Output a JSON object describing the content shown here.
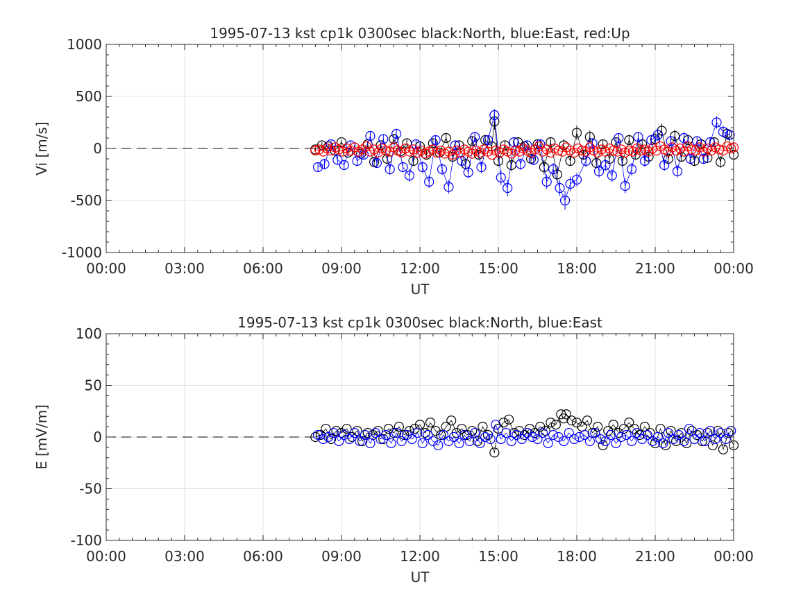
{
  "chart_data": [
    {
      "type": "scatter",
      "title": "1995-07-13 kst cp1k 0300sec black:North, blue:East, red:Up",
      "xlabel": "UT",
      "ylabel": "Vi [m/s]",
      "xlim": [
        0,
        24
      ],
      "ylim": [
        -1000,
        1000
      ],
      "xticks": [
        0,
        3,
        6,
        9,
        12,
        15,
        18,
        21,
        24
      ],
      "xtick_labels": [
        "00:00",
        "03:00",
        "06:00",
        "09:00",
        "12:00",
        "15:00",
        "18:00",
        "21:00",
        "00:00"
      ],
      "yticks": [
        1000,
        500,
        0,
        -500,
        -1000
      ],
      "ytick_labels": [
        "1000",
        "500",
        "0",
        "-500",
        "-1000"
      ],
      "grid": true,
      "baseline": {
        "y": 0,
        "x_start": 0,
        "x_end": 8,
        "style": "dashed"
      },
      "series": [
        {
          "color": "#000000",
          "marker": "circle",
          "error_bars": true,
          "x": [
            8.0,
            8.25,
            8.5,
            8.75,
            9.0,
            9.25,
            9.5,
            9.75,
            10.0,
            10.25,
            10.5,
            10.75,
            11.0,
            11.25,
            11.5,
            11.75,
            12.0,
            12.25,
            12.5,
            12.75,
            13.0,
            13.25,
            13.5,
            13.75,
            14.0,
            14.25,
            14.5,
            14.75,
            14.85,
            15.0,
            15.25,
            15.5,
            15.75,
            16.0,
            16.25,
            16.5,
            16.75,
            17.0,
            17.25,
            17.5,
            17.75,
            18.0,
            18.25,
            18.5,
            18.75,
            19.0,
            19.25,
            19.5,
            19.75,
            20.0,
            20.25,
            20.5,
            20.75,
            21.0,
            21.25,
            21.5,
            21.75,
            22.0,
            22.25,
            22.5,
            22.75,
            23.0,
            23.25,
            23.5,
            23.75,
            24.0
          ],
          "y": [
            -10,
            30,
            20,
            -20,
            60,
            -40,
            10,
            -50,
            40,
            -130,
            30,
            -100,
            90,
            -30,
            50,
            -120,
            20,
            -60,
            50,
            -40,
            100,
            -80,
            30,
            -150,
            70,
            -60,
            80,
            20,
            260,
            -120,
            30,
            -160,
            60,
            20,
            -100,
            40,
            -180,
            60,
            -250,
            30,
            -120,
            150,
            -60,
            110,
            -140,
            40,
            -100,
            60,
            -120,
            80,
            -60,
            40,
            -80,
            90,
            170,
            -100,
            120,
            -80,
            80,
            -120,
            40,
            -90,
            60,
            -130,
            140,
            -60
          ],
          "err": [
            20,
            30,
            25,
            30,
            25,
            30,
            25,
            30,
            35,
            40,
            30,
            40,
            50,
            40,
            35,
            40,
            30,
            35,
            40,
            35,
            45,
            40,
            35,
            50,
            45,
            40,
            50,
            40,
            80,
            50,
            40,
            60,
            40,
            35,
            45,
            40,
            70,
            50,
            80,
            60,
            50,
            70,
            50,
            60,
            50,
            45,
            50,
            45,
            50,
            50,
            45,
            40,
            50,
            60,
            70,
            50,
            60,
            50,
            45,
            50,
            45,
            50,
            45,
            55,
            60,
            50
          ]
        },
        {
          "color": "#0000ff",
          "marker": "circle",
          "error_bars": true,
          "x": [
            8.1,
            8.35,
            8.6,
            8.85,
            9.1,
            9.35,
            9.6,
            9.85,
            10.1,
            10.35,
            10.6,
            10.85,
            11.1,
            11.35,
            11.6,
            11.85,
            12.1,
            12.35,
            12.6,
            12.85,
            13.1,
            13.35,
            13.6,
            13.85,
            14.1,
            14.35,
            14.6,
            14.85,
            15.1,
            15.35,
            15.6,
            15.85,
            16.1,
            16.35,
            16.6,
            16.85,
            17.1,
            17.35,
            17.55,
            17.75,
            18.0,
            18.35,
            18.6,
            18.85,
            19.1,
            19.35,
            19.6,
            19.85,
            20.1,
            20.35,
            20.6,
            20.85,
            21.1,
            21.35,
            21.6,
            21.85,
            22.1,
            22.35,
            22.6,
            22.85,
            23.1,
            23.35,
            23.6,
            23.85
          ],
          "y": [
            -180,
            -150,
            40,
            -110,
            -160,
            30,
            -120,
            -60,
            120,
            -140,
            90,
            -200,
            140,
            -180,
            -260,
            40,
            -180,
            -320,
            80,
            -200,
            -370,
            30,
            -120,
            -230,
            110,
            -180,
            80,
            320,
            -280,
            -380,
            60,
            -150,
            30,
            -110,
            40,
            -320,
            -200,
            -380,
            -500,
            -340,
            -300,
            -120,
            50,
            -220,
            -160,
            -260,
            100,
            -360,
            -200,
            110,
            -120,
            80,
            130,
            -160,
            70,
            -220,
            100,
            -100,
            70,
            -100,
            60,
            250,
            160,
            130
          ],
          "err": [
            40,
            50,
            35,
            40,
            50,
            35,
            45,
            40,
            50,
            45,
            40,
            55,
            50,
            50,
            60,
            40,
            55,
            60,
            45,
            55,
            65,
            40,
            50,
            55,
            50,
            55,
            45,
            60,
            70,
            80,
            45,
            55,
            40,
            50,
            45,
            70,
            60,
            75,
            90,
            70,
            65,
            55,
            45,
            60,
            55,
            60,
            50,
            70,
            60,
            50,
            55,
            50,
            60,
            55,
            50,
            60,
            55,
            50,
            45,
            50,
            45,
            60,
            55,
            50
          ]
        },
        {
          "color": "#ff0000",
          "marker": "circle",
          "error_bars": false,
          "x": [
            8.0,
            8.15,
            8.3,
            8.45,
            8.6,
            8.75,
            8.9,
            9.05,
            9.2,
            9.35,
            9.5,
            9.65,
            9.8,
            9.95,
            10.1,
            10.25,
            10.4,
            10.55,
            10.7,
            10.85,
            11.0,
            11.15,
            11.3,
            11.45,
            11.6,
            11.75,
            11.9,
            12.05,
            12.2,
            12.35,
            12.5,
            12.65,
            12.8,
            12.95,
            13.1,
            13.25,
            13.4,
            13.55,
            13.7,
            13.85,
            14.0,
            14.15,
            14.3,
            14.45,
            14.6,
            14.75,
            14.9,
            15.05,
            15.2,
            15.35,
            15.5,
            15.65,
            15.8,
            15.95,
            16.1,
            16.25,
            16.4,
            16.55,
            16.7,
            16.85,
            17.0,
            17.15,
            17.3,
            17.45,
            17.6,
            17.75,
            17.9,
            18.05,
            18.2,
            18.35,
            18.5,
            18.65,
            18.8,
            18.95,
            19.1,
            19.25,
            19.4,
            19.55,
            19.7,
            19.85,
            20.0,
            20.15,
            20.3,
            20.45,
            20.6,
            20.75,
            20.9,
            21.05,
            21.2,
            21.35,
            21.5,
            21.65,
            21.8,
            21.95,
            22.1,
            22.25,
            22.4,
            22.55,
            22.7,
            22.85,
            23.0,
            23.15,
            23.3,
            23.45,
            23.6,
            23.75,
            23.9,
            24.0
          ],
          "y": [
            -20,
            -10,
            -30,
            0,
            -20,
            10,
            -10,
            -30,
            0,
            -20,
            10,
            -30,
            -10,
            20,
            -30,
            -10,
            -40,
            0,
            -20,
            -30,
            10,
            -20,
            -40,
            0,
            -30,
            -10,
            -40,
            -20,
            -50,
            -30,
            -10,
            -40,
            -20,
            -50,
            -30,
            -60,
            -20,
            -40,
            -10,
            -30,
            -50,
            -20,
            -40,
            -10,
            -30,
            -60,
            -20,
            -40,
            -10,
            -30,
            -50,
            -20,
            -30,
            0,
            -20,
            -40,
            -10,
            20,
            -30,
            -10,
            -40,
            0,
            -20,
            -30,
            10,
            -20,
            -40,
            0,
            -20,
            -30,
            10,
            -20,
            -40,
            -10,
            -30,
            0,
            -20,
            -30,
            -10,
            -40,
            -20,
            -30,
            0,
            -20,
            -10,
            -30,
            0,
            -20,
            20,
            -10,
            -30,
            10,
            -20,
            0,
            -30,
            20,
            -10,
            -20,
            10,
            -30,
            0,
            -20,
            10,
            -10,
            -20,
            20,
            0,
            10
          ]
        }
      ]
    },
    {
      "type": "scatter",
      "title": "1995-07-13 kst cp1k 0300sec black:North, blue:East",
      "xlabel": "UT",
      "ylabel": "E [mV/m]",
      "xlim": [
        0,
        24
      ],
      "ylim": [
        -100,
        100
      ],
      "xticks": [
        0,
        3,
        6,
        9,
        12,
        15,
        18,
        21,
        24
      ],
      "xtick_labels": [
        "00:00",
        "03:00",
        "06:00",
        "09:00",
        "12:00",
        "15:00",
        "18:00",
        "21:00",
        "00:00"
      ],
      "yticks": [
        100,
        50,
        0,
        -50,
        -100
      ],
      "ytick_labels": [
        "100",
        "50",
        "0",
        "-50",
        "-100"
      ],
      "grid": true,
      "baseline": {
        "y": 0,
        "x_start": 0,
        "x_end": 8,
        "style": "dashed"
      },
      "series": [
        {
          "color": "#000000",
          "marker": "circle",
          "error_bars": false,
          "x": [
            8.0,
            8.2,
            8.4,
            8.6,
            8.8,
            9.0,
            9.2,
            9.4,
            9.6,
            9.8,
            10.0,
            10.2,
            10.4,
            10.6,
            10.8,
            11.0,
            11.2,
            11.4,
            11.6,
            11.8,
            12.0,
            12.2,
            12.4,
            12.6,
            12.8,
            13.0,
            13.2,
            13.4,
            13.6,
            13.8,
            14.0,
            14.2,
            14.4,
            14.6,
            14.85,
            15.0,
            15.2,
            15.4,
            15.6,
            15.8,
            16.0,
            16.2,
            16.4,
            16.6,
            16.8,
            17.0,
            17.2,
            17.4,
            17.5,
            17.6,
            17.8,
            18.0,
            18.2,
            18.4,
            18.6,
            18.8,
            19.0,
            19.2,
            19.4,
            19.6,
            19.8,
            20.0,
            20.2,
            20.4,
            20.6,
            20.8,
            21.0,
            21.2,
            21.4,
            21.6,
            21.8,
            22.0,
            22.2,
            22.4,
            22.6,
            22.8,
            23.0,
            23.2,
            23.4,
            23.6,
            23.8,
            24.0
          ],
          "y": [
            0,
            2,
            8,
            -2,
            6,
            4,
            8,
            0,
            6,
            -4,
            4,
            2,
            6,
            -2,
            8,
            4,
            10,
            2,
            6,
            8,
            12,
            4,
            14,
            6,
            2,
            10,
            16,
            4,
            8,
            2,
            6,
            -4,
            10,
            2,
            -15,
            8,
            14,
            17,
            4,
            6,
            2,
            8,
            4,
            10,
            6,
            14,
            12,
            22,
            18,
            22,
            16,
            14,
            10,
            16,
            4,
            10,
            -8,
            6,
            12,
            4,
            8,
            14,
            8,
            2,
            10,
            4,
            -6,
            8,
            -8,
            6,
            -4,
            4,
            -6,
            6,
            2,
            -4,
            4,
            -8,
            6,
            -12,
            4,
            -8
          ]
        },
        {
          "color": "#0000ff",
          "marker": "circle",
          "error_bars": false,
          "x": [
            8.1,
            8.3,
            8.5,
            8.7,
            8.9,
            9.1,
            9.3,
            9.5,
            9.7,
            9.9,
            10.1,
            10.3,
            10.5,
            10.7,
            10.9,
            11.1,
            11.3,
            11.5,
            11.7,
            11.9,
            12.1,
            12.3,
            12.5,
            12.7,
            12.9,
            13.1,
            13.3,
            13.5,
            13.7,
            13.9,
            14.1,
            14.3,
            14.5,
            14.7,
            14.9,
            15.1,
            15.3,
            15.5,
            15.7,
            15.9,
            16.1,
            16.3,
            16.5,
            16.7,
            16.9,
            17.1,
            17.3,
            17.5,
            17.7,
            17.9,
            18.1,
            18.3,
            18.5,
            18.7,
            18.9,
            19.1,
            19.3,
            19.5,
            19.7,
            19.9,
            20.1,
            20.3,
            20.5,
            20.7,
            20.9,
            21.1,
            21.3,
            21.5,
            21.7,
            21.9,
            22.1,
            22.3,
            22.5,
            22.7,
            22.9,
            23.1,
            23.3,
            23.5,
            23.7,
            23.9
          ],
          "y": [
            2,
            -2,
            0,
            4,
            -4,
            2,
            -2,
            4,
            -4,
            2,
            -6,
            4,
            -2,
            2,
            -6,
            4,
            -4,
            2,
            -2,
            4,
            -6,
            2,
            -4,
            -8,
            2,
            -4,
            0,
            -6,
            2,
            -4,
            4,
            -6,
            0,
            -2,
            12,
            -2,
            4,
            -4,
            2,
            -2,
            4,
            0,
            -2,
            4,
            -6,
            2,
            0,
            -4,
            4,
            -2,
            0,
            2,
            -4,
            4,
            -2,
            -4,
            2,
            -6,
            0,
            2,
            -4,
            4,
            -2,
            2,
            -4,
            0,
            -6,
            4,
            -2,
            2,
            -4,
            8,
            -2,
            4,
            -4,
            6,
            -2,
            4,
            -2,
            6
          ]
        }
      ]
    }
  ]
}
